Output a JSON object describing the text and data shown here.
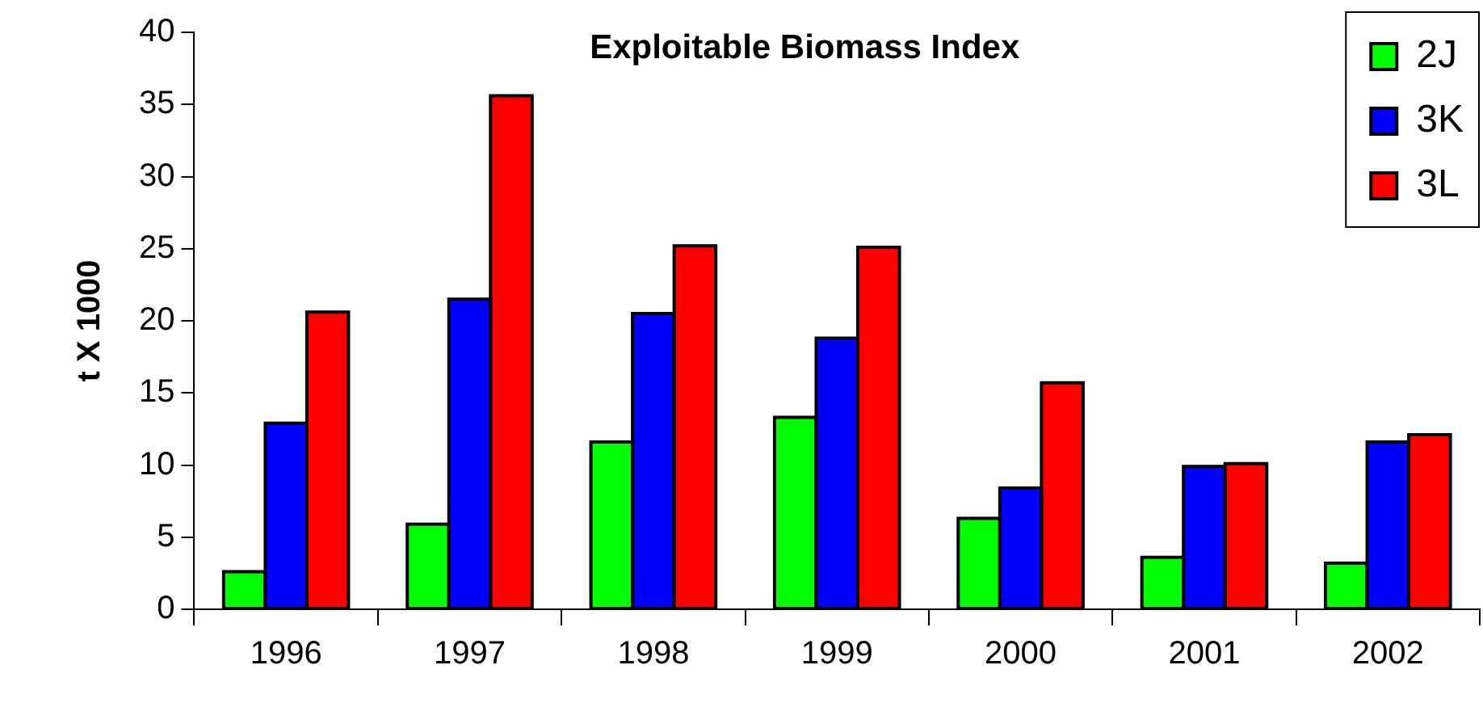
{
  "chart_data": {
    "type": "bar",
    "title": "Exploitable Biomass Index",
    "ylabel": "t X 1000",
    "categories": [
      "1996",
      "1997",
      "1998",
      "1999",
      "2000",
      "2001",
      "2002"
    ],
    "series": [
      {
        "name": "2J",
        "color": "#00ff00",
        "values": [
          2.6,
          5.9,
          11.6,
          13.3,
          6.3,
          3.6,
          3.2
        ]
      },
      {
        "name": "3K",
        "color": "#0000ff",
        "values": [
          12.9,
          21.5,
          20.5,
          18.8,
          8.4,
          9.9,
          11.6
        ]
      },
      {
        "name": "3L",
        "color": "#ff0000",
        "values": [
          20.6,
          35.6,
          25.2,
          25.1,
          15.7,
          10.1,
          12.1
        ]
      }
    ],
    "ylim": [
      0,
      40
    ],
    "yticks": [
      0,
      5,
      10,
      15,
      20,
      25,
      30,
      35,
      40
    ],
    "grid": false,
    "legend": "top right"
  }
}
